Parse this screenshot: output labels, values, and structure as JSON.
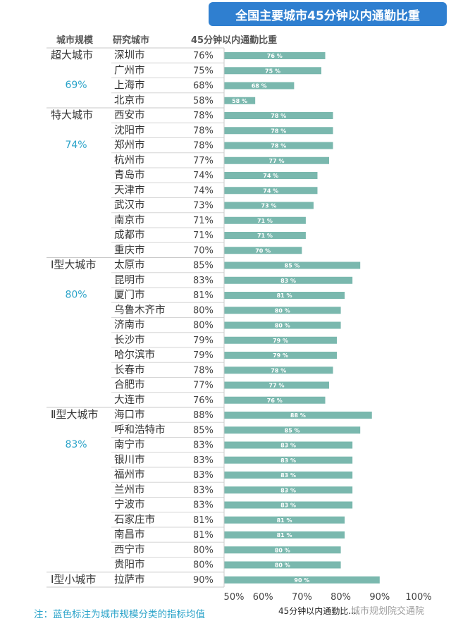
{
  "title": "全国主要城市45分钟以内通勤比重",
  "headers": {
    "scale": "城市规模",
    "city": "研究城市",
    "value": "45分钟以内通勤比重"
  },
  "footnote": "注：蓝色标注为城市规模分类的指标均值",
  "watermark": "城市规划院交通院",
  "colors": {
    "bar": "#7ab8ae",
    "accent": "#2aa3c9",
    "title_bg": "#2f7fd0"
  },
  "chart_data": {
    "type": "bar",
    "orientation": "horizontal",
    "xlabel": "45分钟以内通勤比...",
    "xlim": [
      50,
      100
    ],
    "xticks": [
      "50%",
      "60%",
      "70%",
      "80%",
      "90%",
      "100%"
    ],
    "groups": [
      {
        "name": "超大城市",
        "avg": "69%",
        "cities": [
          {
            "city": "深圳市",
            "value": 76
          },
          {
            "city": "广州市",
            "value": 75
          },
          {
            "city": "上海市",
            "value": 68
          },
          {
            "city": "北京市",
            "value": 58
          }
        ]
      },
      {
        "name": "特大城市",
        "avg": "74%",
        "cities": [
          {
            "city": "西安市",
            "value": 78
          },
          {
            "city": "沈阳市",
            "value": 78
          },
          {
            "city": "郑州市",
            "value": 78
          },
          {
            "city": "杭州市",
            "value": 77
          },
          {
            "city": "青岛市",
            "value": 74
          },
          {
            "city": "天津市",
            "value": 74
          },
          {
            "city": "武汉市",
            "value": 73
          },
          {
            "city": "南京市",
            "value": 71
          },
          {
            "city": "成都市",
            "value": 71
          },
          {
            "city": "重庆市",
            "value": 70
          }
        ]
      },
      {
        "name": "Ⅰ型大城市",
        "avg": "80%",
        "cities": [
          {
            "city": "太原市",
            "value": 85
          },
          {
            "city": "昆明市",
            "value": 83
          },
          {
            "city": "厦门市",
            "value": 81
          },
          {
            "city": "乌鲁木齐市",
            "value": 80
          },
          {
            "city": "济南市",
            "value": 80
          },
          {
            "city": "长沙市",
            "value": 79
          },
          {
            "city": "哈尔滨市",
            "value": 79
          },
          {
            "city": "长春市",
            "value": 78
          },
          {
            "city": "合肥市",
            "value": 77
          },
          {
            "city": "大连市",
            "value": 76
          }
        ]
      },
      {
        "name": "Ⅱ型大城市",
        "avg": "83%",
        "cities": [
          {
            "city": "海口市",
            "value": 88
          },
          {
            "city": "呼和浩特市",
            "value": 85
          },
          {
            "city": "南宁市",
            "value": 83
          },
          {
            "city": "银川市",
            "value": 83
          },
          {
            "city": "福州市",
            "value": 83
          },
          {
            "city": "兰州市",
            "value": 83
          },
          {
            "city": "宁波市",
            "value": 83
          },
          {
            "city": "石家庄市",
            "value": 81
          },
          {
            "city": "南昌市",
            "value": 81
          },
          {
            "city": "西宁市",
            "value": 80
          },
          {
            "city": "贵阳市",
            "value": 80
          }
        ]
      },
      {
        "name": "Ⅰ型小城市",
        "avg": "",
        "cities": [
          {
            "city": "拉萨市",
            "value": 90
          }
        ]
      }
    ]
  }
}
